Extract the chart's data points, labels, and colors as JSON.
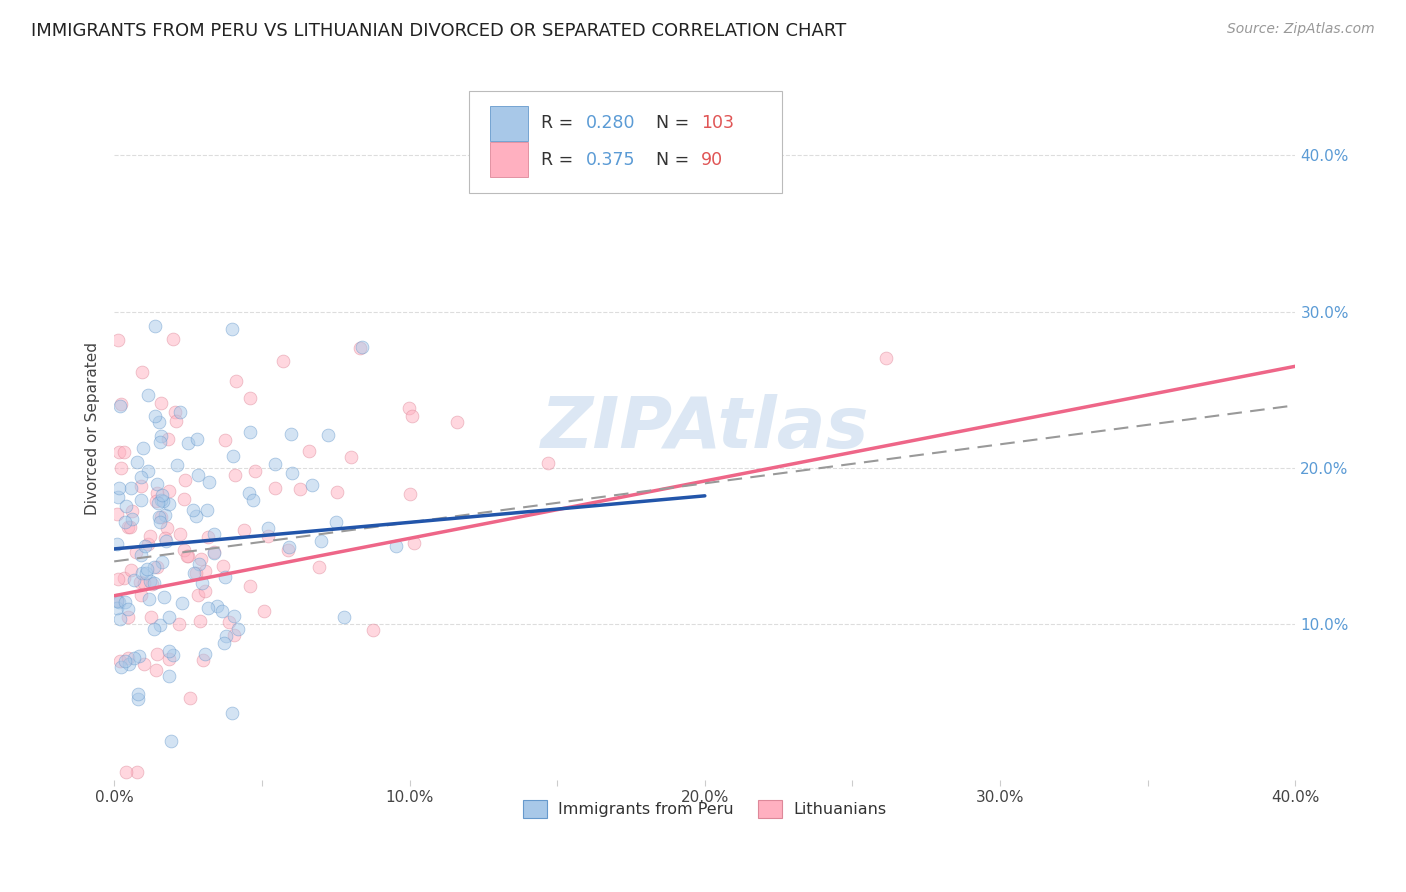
{
  "title": "IMMIGRANTS FROM PERU VS LITHUANIAN DIVORCED OR SEPARATED CORRELATION CHART",
  "source": "Source: ZipAtlas.com",
  "ylabel": "Divorced or Separated",
  "xlim": [
    0.0,
    0.4
  ],
  "ylim": [
    0.0,
    0.45
  ],
  "xtick_labels": [
    "0.0%",
    "",
    "10.0%",
    "",
    "20.0%",
    "",
    "30.0%",
    "",
    "40.0%"
  ],
  "xtick_vals": [
    0.0,
    0.05,
    0.1,
    0.15,
    0.2,
    0.25,
    0.3,
    0.35,
    0.4
  ],
  "ytick_labels": [
    "10.0%",
    "20.0%",
    "30.0%",
    "40.0%"
  ],
  "ytick_vals": [
    0.1,
    0.2,
    0.3,
    0.4
  ],
  "peru_color": "#a8c8e8",
  "peru_edge_color": "#6699cc",
  "lith_color": "#ffb0c0",
  "lith_edge_color": "#dd8899",
  "peru_R": 0.28,
  "peru_N": 103,
  "lith_R": 0.375,
  "lith_N": 90,
  "legend_label_peru": "Immigrants from Peru",
  "legend_label_lith": "Lithuanians",
  "background_color": "#ffffff",
  "grid_color": "#dddddd",
  "watermark": "ZIPAtlas",
  "title_fontsize": 13,
  "axis_label_fontsize": 11,
  "tick_fontsize": 11,
  "marker_size": 85,
  "marker_alpha": 0.5,
  "peru_line_color": "#2255aa",
  "lith_line_color": "#ee6688",
  "combined_line_color": "#999999",
  "peru_line_start_y": 0.148,
  "peru_line_end_y": 0.182,
  "lith_line_start_y": 0.118,
  "lith_line_end_y": 0.265,
  "combined_line_start_y": 0.14,
  "combined_line_end_y": 0.24
}
